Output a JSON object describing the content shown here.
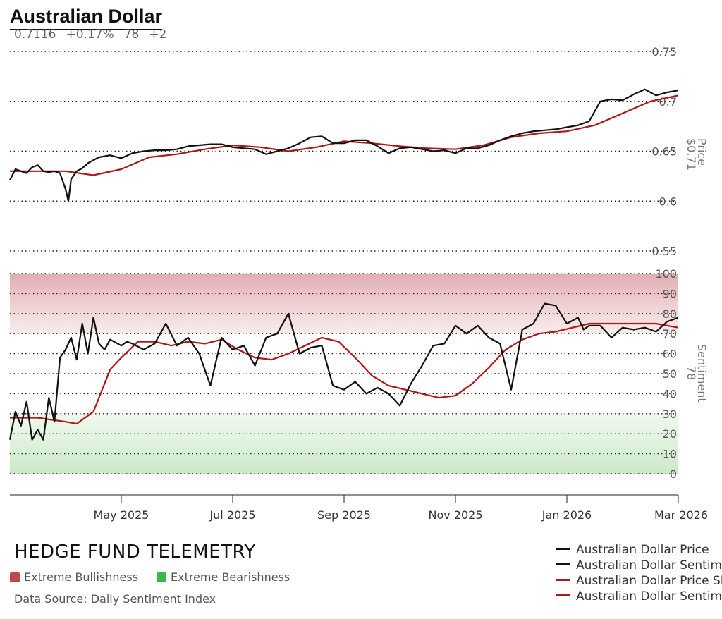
{
  "header": {
    "title": "Australian Dollar",
    "price": "0.7116",
    "change": "+0.17%",
    "sentiment": "78",
    "sentiment_change": "+2"
  },
  "colors": {
    "price_line": "#111111",
    "sma_line": "#b01818",
    "bull_zone": "#e0a9ad",
    "bear_zone": "#c9e8c6",
    "bull_key": "#c0474a",
    "bear_key": "#3cb84a"
  },
  "footer": {
    "brand": "HEDGE FUND TELEMETRY",
    "key_bull": "Extreme Bullishness",
    "key_bear": "Extreme Bearishness",
    "source": "Data Source: Daily Sentiment Index"
  },
  "legend": [
    {
      "label": "Australian Dollar Price",
      "color": "#111111"
    },
    {
      "label": "Australian Dollar Sentiment",
      "color": "#111111"
    },
    {
      "label": "Australian Dollar Price SMA",
      "color": "#b01818"
    },
    {
      "label": "Australian Dollar Sentiment SMA",
      "color": "#b01818"
    }
  ],
  "chart_data": {
    "type": "line",
    "x_range": [
      "2025-03-01",
      "2026-03-01"
    ],
    "x_ticks": [
      "May 2025",
      "Jul 2025",
      "Sep 2025",
      "Nov 2025",
      "Jan 2026",
      "Mar 2026"
    ],
    "x_tick_months": [
      2,
      4,
      6,
      8,
      10,
      12
    ],
    "price_panel": {
      "axis_label": "Price",
      "axis_value": "$0.71",
      "ylim": [
        0.55,
        0.75
      ],
      "yticks": [
        0.55,
        0.6,
        0.65,
        0.7,
        0.75
      ],
      "ytick_labels": [
        "0.55",
        "0.6",
        "0.65",
        "0.7",
        "0.75"
      ],
      "series": [
        {
          "name": "Australian Dollar Price",
          "x": [
            0,
            0.1,
            0.2,
            0.3,
            0.4,
            0.5,
            0.6,
            0.7,
            0.8,
            0.9,
            1.0,
            1.05,
            1.1,
            1.2,
            1.3,
            1.4,
            1.5,
            1.6,
            1.8,
            2.0,
            2.2,
            2.4,
            2.6,
            2.8,
            3.0,
            3.2,
            3.4,
            3.6,
            3.8,
            4.0,
            4.2,
            4.4,
            4.6,
            4.8,
            5.0,
            5.2,
            5.4,
            5.6,
            5.8,
            6.0,
            6.2,
            6.4,
            6.6,
            6.8,
            7.0,
            7.2,
            7.4,
            7.6,
            7.8,
            8.0,
            8.2,
            8.4,
            8.6,
            8.8,
            9.0,
            9.2,
            9.4,
            9.6,
            9.8,
            10.0,
            10.2,
            10.4,
            10.6,
            10.8,
            11.0,
            11.2,
            11.4,
            11.6,
            11.8,
            12.0
          ],
          "values": [
            0.621,
            0.632,
            0.63,
            0.628,
            0.634,
            0.636,
            0.63,
            0.629,
            0.63,
            0.628,
            0.612,
            0.6,
            0.622,
            0.63,
            0.633,
            0.638,
            0.641,
            0.644,
            0.646,
            0.643,
            0.648,
            0.65,
            0.651,
            0.651,
            0.652,
            0.655,
            0.656,
            0.657,
            0.657,
            0.654,
            0.653,
            0.652,
            0.647,
            0.65,
            0.653,
            0.658,
            0.664,
            0.665,
            0.658,
            0.658,
            0.661,
            0.661,
            0.655,
            0.648,
            0.653,
            0.654,
            0.652,
            0.65,
            0.651,
            0.648,
            0.653,
            0.653,
            0.656,
            0.661,
            0.665,
            0.668,
            0.67,
            0.671,
            0.672,
            0.674,
            0.676,
            0.68,
            0.7,
            0.702,
            0.701,
            0.707,
            0.712,
            0.706,
            0.709,
            0.711
          ]
        },
        {
          "name": "Australian Dollar Price SMA",
          "x": [
            0,
            0.5,
            1.0,
            1.5,
            2.0,
            2.5,
            3.0,
            3.5,
            4.0,
            4.5,
            5.0,
            5.5,
            6.0,
            6.5,
            7.0,
            7.5,
            8.0,
            8.5,
            9.0,
            9.5,
            10.0,
            10.5,
            11.0,
            11.5,
            12.0
          ],
          "values": [
            0.63,
            0.63,
            0.63,
            0.626,
            0.632,
            0.644,
            0.647,
            0.652,
            0.656,
            0.654,
            0.65,
            0.654,
            0.66,
            0.658,
            0.655,
            0.653,
            0.652,
            0.656,
            0.664,
            0.668,
            0.67,
            0.676,
            0.688,
            0.7,
            0.706
          ]
        }
      ]
    },
    "sentiment_panel": {
      "axis_label": "Sentiment",
      "axis_value": "78",
      "ylim": [
        0,
        100
      ],
      "yticks": [
        0,
        10,
        20,
        30,
        40,
        50,
        60,
        70,
        80,
        90,
        100
      ],
      "ytick_labels": [
        "0",
        "10",
        "20",
        "30",
        "40",
        "50",
        "60",
        "70",
        "80",
        "90",
        "100"
      ],
      "extreme_bullish_range": [
        70,
        100
      ],
      "extreme_bearish_range": [
        0,
        30
      ],
      "series": [
        {
          "name": "Australian Dollar Sentiment",
          "x": [
            0,
            0.1,
            0.2,
            0.3,
            0.4,
            0.5,
            0.6,
            0.7,
            0.8,
            0.9,
            1.0,
            1.1,
            1.2,
            1.3,
            1.4,
            1.5,
            1.6,
            1.7,
            1.8,
            2.0,
            2.1,
            2.2,
            2.4,
            2.6,
            2.8,
            3.0,
            3.2,
            3.4,
            3.6,
            3.8,
            4.0,
            4.2,
            4.4,
            4.6,
            4.8,
            5.0,
            5.2,
            5.4,
            5.6,
            5.8,
            6.0,
            6.2,
            6.4,
            6.6,
            6.8,
            7.0,
            7.2,
            7.4,
            7.6,
            7.8,
            8.0,
            8.2,
            8.4,
            8.6,
            8.8,
            9.0,
            9.2,
            9.4,
            9.6,
            9.8,
            10.0,
            10.2,
            10.3,
            10.4,
            10.6,
            10.8,
            11.0,
            11.2,
            11.4,
            11.6,
            11.8,
            12.0
          ],
          "values": [
            17,
            31,
            24,
            36,
            17,
            22,
            17,
            38,
            26,
            58,
            62,
            68,
            57,
            75,
            60,
            78,
            65,
            62,
            67,
            64,
            66,
            65,
            62,
            65,
            75,
            64,
            68,
            60,
            44,
            68,
            62,
            64,
            54,
            68,
            70,
            80,
            60,
            63,
            64,
            44,
            42,
            46,
            40,
            43,
            40,
            34,
            45,
            54,
            64,
            65,
            74,
            70,
            74,
            68,
            65,
            42,
            72,
            75,
            85,
            84,
            75,
            78,
            72,
            74,
            74,
            68,
            73,
            72,
            73,
            71,
            76,
            78
          ]
        },
        {
          "name": "Australian Dollar Sentiment SMA",
          "x": [
            0,
            0.5,
            1.0,
            1.2,
            1.5,
            1.8,
            2.0,
            2.3,
            2.6,
            2.9,
            3.2,
            3.5,
            3.8,
            4.1,
            4.4,
            4.7,
            5.0,
            5.3,
            5.6,
            5.9,
            6.2,
            6.5,
            6.8,
            7.1,
            7.4,
            7.7,
            8.0,
            8.3,
            8.6,
            8.9,
            9.2,
            9.5,
            9.8,
            10.1,
            10.4,
            10.7,
            11.0,
            11.3,
            11.6,
            12.0
          ],
          "values": [
            28,
            28,
            26,
            25,
            31,
            52,
            58,
            66,
            66,
            64,
            66,
            65,
            67,
            62,
            58,
            57,
            60,
            64,
            68,
            66,
            58,
            49,
            44,
            42,
            40,
            38,
            39,
            45,
            53,
            62,
            67,
            70,
            71,
            73,
            75,
            75,
            75,
            75,
            75,
            73
          ]
        }
      ]
    }
  }
}
